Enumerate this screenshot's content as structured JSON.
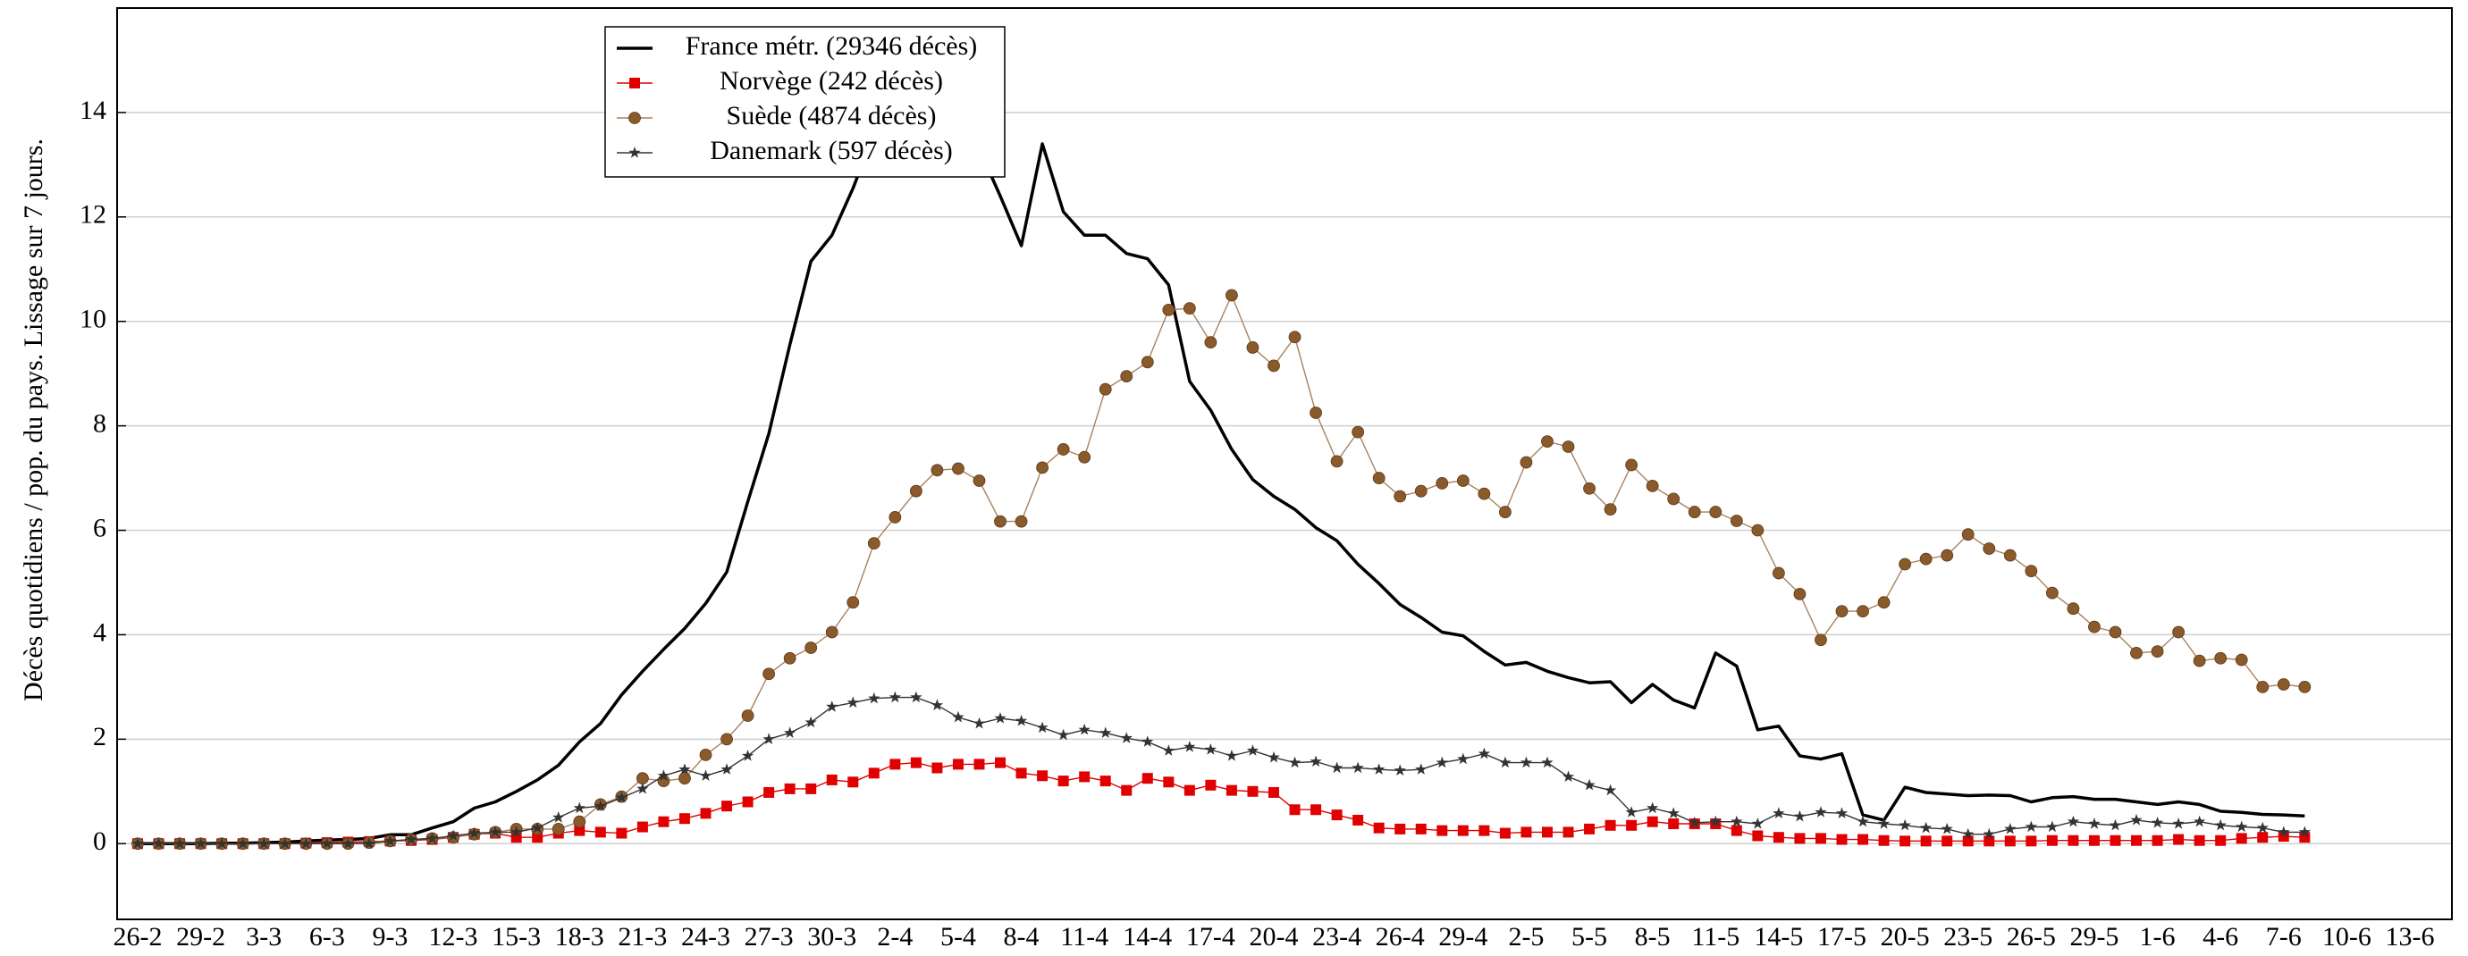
{
  "chart_data": {
    "type": "line",
    "y_label": "Décès quotidiens / pop. du pays. Lissage sur 7 jours.",
    "categories": [
      "26-2",
      null,
      null,
      "29-2",
      null,
      null,
      "3-3",
      null,
      null,
      "6-3",
      null,
      null,
      "9-3",
      null,
      null,
      "12-3",
      null,
      null,
      "15-3",
      null,
      null,
      "18-3",
      null,
      null,
      "21-3",
      null,
      null,
      "24-3",
      null,
      null,
      "27-3",
      null,
      null,
      "30-3",
      null,
      null,
      "2-4",
      null,
      null,
      "5-4",
      null,
      null,
      "8-4",
      null,
      null,
      "11-4",
      null,
      null,
      "14-4",
      null,
      null,
      "17-4",
      null,
      null,
      "20-4",
      null,
      null,
      "23-4",
      null,
      null,
      "26-4",
      null,
      null,
      "29-4",
      null,
      null,
      "2-5",
      null,
      null,
      "5-5",
      null,
      null,
      "8-5",
      null,
      null,
      "11-5",
      null,
      null,
      "14-5",
      null,
      null,
      "17-5",
      null,
      null,
      "20-5",
      null,
      null,
      "23-5",
      null,
      null,
      "26-5",
      null,
      null,
      "29-5",
      null,
      null,
      "1-6",
      null,
      null,
      "4-6",
      null,
      null,
      "7-6",
      null,
      null,
      "10-6",
      null,
      null,
      "13-6"
    ],
    "ylim": [
      -1.45,
      16
    ],
    "yticks": [
      0,
      2,
      4,
      6,
      8,
      10,
      12,
      14
    ],
    "grid": true,
    "series": [
      {
        "name": "France métr. (29346 décès)",
        "color": "#000000",
        "marker": "none",
        "values": [
          0,
          0,
          0,
          0,
          0.01,
          0.01,
          0.02,
          0.03,
          0.05,
          0.07,
          0.08,
          0.1,
          0.17,
          0.17,
          0.3,
          0.42,
          0.68,
          0.8,
          1.0,
          1.22,
          1.5,
          1.95,
          2.3,
          2.85,
          3.3,
          3.72,
          4.12,
          4.6,
          5.2,
          6.55,
          7.85,
          9.55,
          11.15,
          11.65,
          12.55,
          13.6,
          14.5,
          15.0,
          14.8,
          14.0,
          13.3,
          12.4,
          11.45,
          13.4,
          12.1,
          11.65,
          11.65,
          11.3,
          11.2,
          10.7,
          8.85,
          8.3,
          7.55,
          6.97,
          6.65,
          6.4,
          6.05,
          5.8,
          5.35,
          4.98,
          4.58,
          4.33,
          4.05,
          3.98,
          3.68,
          3.42,
          3.47,
          3.3,
          3.18,
          3.08,
          3.1,
          2.7,
          3.05,
          2.75,
          2.6,
          3.65,
          3.4,
          2.18,
          2.25,
          1.68,
          1.62,
          1.72,
          0.55,
          0.45,
          1.08,
          0.98,
          0.95,
          0.92,
          0.93,
          0.92,
          0.8,
          0.88,
          0.9,
          0.85,
          0.85,
          0.8,
          0.75,
          0.8,
          0.75,
          0.62,
          0.6,
          0.56,
          0.55,
          0.53,
          null,
          null,
          null,
          null,
          null
        ]
      },
      {
        "name": "Norvège (242 décès)",
        "color": "#e00000",
        "marker": "square",
        "values": [
          0,
          0,
          0,
          0,
          0,
          0,
          0,
          0,
          0.01,
          0.02,
          0.03,
          0.04,
          0.05,
          0.06,
          0.08,
          0.12,
          0.18,
          0.2,
          0.12,
          0.12,
          0.2,
          0.25,
          0.22,
          0.2,
          0.32,
          0.42,
          0.48,
          0.58,
          0.72,
          0.8,
          0.98,
          1.05,
          1.05,
          1.22,
          1.18,
          1.35,
          1.52,
          1.55,
          1.45,
          1.52,
          1.52,
          1.55,
          1.35,
          1.3,
          1.2,
          1.28,
          1.2,
          1.02,
          1.25,
          1.18,
          1.02,
          1.12,
          1.02,
          1.0,
          0.98,
          0.65,
          0.65,
          0.55,
          0.45,
          0.3,
          0.28,
          0.28,
          0.25,
          0.25,
          0.25,
          0.2,
          0.22,
          0.22,
          0.22,
          0.28,
          0.35,
          0.35,
          0.42,
          0.38,
          0.38,
          0.38,
          0.25,
          0.15,
          0.12,
          0.1,
          0.1,
          0.08,
          0.08,
          0.06,
          0.05,
          0.05,
          0.05,
          0.05,
          0.05,
          0.05,
          0.05,
          0.06,
          0.06,
          0.06,
          0.06,
          0.06,
          0.06,
          0.08,
          0.06,
          0.06,
          0.1,
          0.12,
          0.14,
          0.12,
          null,
          null,
          null,
          null,
          null
        ]
      },
      {
        "name": "Suède (4874 décès)",
        "color": "#a9815f",
        "marker_color": "#8b5a2b",
        "marker": "circle",
        "values": [
          0,
          0,
          0,
          0,
          0,
          0,
          0,
          0,
          0,
          0,
          0,
          0.02,
          0.05,
          0.08,
          0.1,
          0.12,
          0.18,
          0.22,
          0.28,
          0.28,
          0.28,
          0.42,
          0.75,
          0.9,
          1.25,
          1.2,
          1.25,
          1.7,
          2.0,
          2.45,
          3.25,
          3.55,
          3.75,
          4.05,
          4.62,
          5.75,
          6.25,
          6.75,
          7.15,
          7.18,
          6.95,
          6.17,
          6.17,
          7.2,
          7.55,
          7.4,
          8.7,
          8.95,
          9.22,
          10.22,
          10.25,
          9.6,
          10.5,
          9.5,
          9.15,
          9.7,
          8.25,
          7.32,
          7.88,
          7.0,
          6.65,
          6.75,
          6.9,
          6.95,
          6.7,
          6.35,
          7.3,
          7.7,
          7.6,
          6.8,
          6.4,
          7.25,
          6.85,
          6.6,
          6.35,
          6.35,
          6.18,
          6.0,
          5.18,
          4.78,
          3.9,
          4.45,
          4.45,
          4.62,
          5.35,
          5.45,
          5.52,
          5.92,
          5.65,
          5.52,
          5.22,
          4.8,
          4.5,
          4.15,
          4.05,
          3.65,
          3.68,
          4.05,
          3.5,
          3.55,
          3.52,
          3.0,
          3.05,
          3.0,
          null,
          null,
          null,
          null,
          null
        ]
      },
      {
        "name": "Danemark (597 décès)",
        "color": "#333333",
        "marker": "star",
        "values": [
          0,
          0,
          0,
          0,
          0,
          0,
          0,
          0,
          0,
          0,
          0,
          0,
          0.05,
          0.08,
          0.1,
          0.15,
          0.2,
          0.22,
          0.22,
          0.3,
          0.5,
          0.68,
          0.72,
          0.88,
          1.05,
          1.3,
          1.42,
          1.3,
          1.42,
          1.68,
          2.0,
          2.12,
          2.32,
          2.62,
          2.7,
          2.78,
          2.8,
          2.8,
          2.65,
          2.42,
          2.3,
          2.4,
          2.35,
          2.22,
          2.08,
          2.18,
          2.12,
          2.02,
          1.95,
          1.78,
          1.85,
          1.8,
          1.68,
          1.78,
          1.65,
          1.55,
          1.57,
          1.45,
          1.45,
          1.42,
          1.4,
          1.42,
          1.55,
          1.62,
          1.72,
          1.55,
          1.55,
          1.55,
          1.28,
          1.12,
          1.02,
          0.6,
          0.68,
          0.58,
          0.4,
          0.42,
          0.42,
          0.38,
          0.58,
          0.52,
          0.6,
          0.58,
          0.42,
          0.38,
          0.35,
          0.3,
          0.28,
          0.18,
          0.18,
          0.28,
          0.32,
          0.32,
          0.42,
          0.38,
          0.35,
          0.45,
          0.4,
          0.38,
          0.42,
          0.35,
          0.32,
          0.3,
          0.22,
          0.22,
          null,
          null,
          null,
          null,
          null
        ]
      }
    ]
  }
}
